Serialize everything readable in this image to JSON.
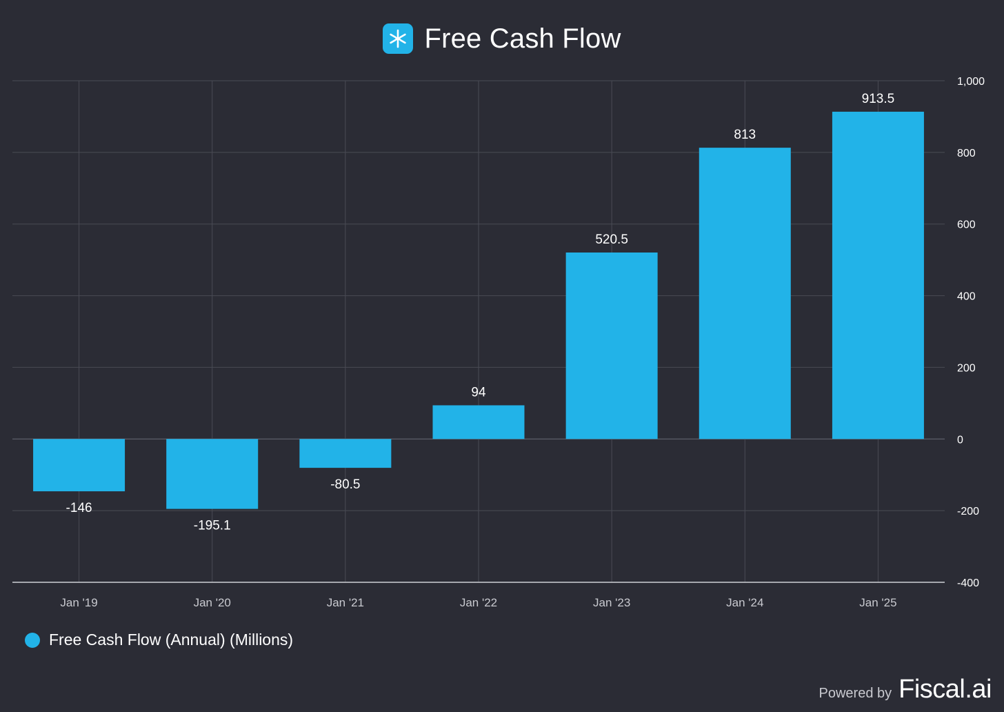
{
  "header": {
    "title": "Free Cash Flow",
    "logo_icon": "snowflake-icon"
  },
  "chart_data": {
    "type": "bar",
    "title": "Free Cash Flow",
    "categories": [
      "Jan '19",
      "Jan '20",
      "Jan '21",
      "Jan '22",
      "Jan '23",
      "Jan '24",
      "Jan '25"
    ],
    "series": [
      {
        "name": "Free Cash Flow (Annual) (Millions)",
        "values": [
          -146,
          -195.1,
          -80.5,
          94,
          520.5,
          813,
          913.5
        ],
        "labels": [
          "-146",
          "-195.1",
          "-80.5",
          "94",
          "520.5",
          "813",
          "913.5"
        ],
        "color": "#22b3e8"
      }
    ],
    "xlabel": "",
    "ylabel": "",
    "ylim": [
      -400,
      1000
    ],
    "yticks": [
      1000,
      800,
      600,
      400,
      200,
      0,
      -200,
      -400
    ],
    "ytick_labels": [
      "1,000",
      "800",
      "600",
      "400",
      "200",
      "0",
      "-200",
      "-400"
    ],
    "y_axis_side": "right",
    "grid": true,
    "legend": "bottom-left"
  },
  "legend": {
    "label": "Free Cash Flow (Annual) (Millions)"
  },
  "footer": {
    "powered_by": "Powered by",
    "brand": "Fiscal.ai"
  },
  "colors": {
    "background": "#2b2c35",
    "bar": "#22b3e8",
    "grid": "#4a4b55",
    "text": "#ffffff",
    "muted_text": "#c9cad0"
  }
}
